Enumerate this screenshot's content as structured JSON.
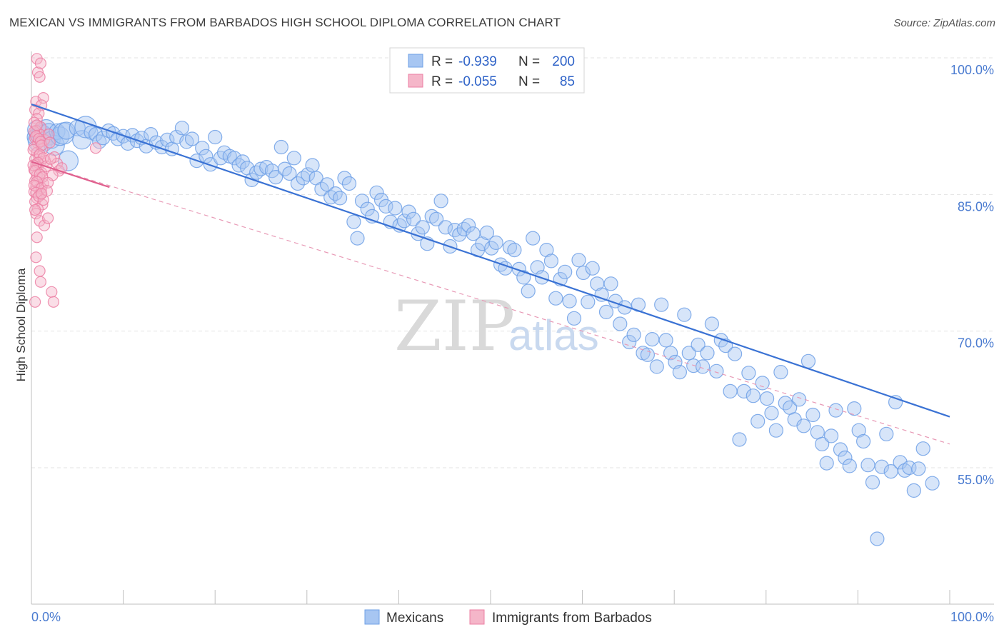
{
  "header": {
    "title": "MEXICAN VS IMMIGRANTS FROM BARBADOS HIGH SCHOOL DIPLOMA CORRELATION CHART",
    "source": "Source: ZipAtlas.com"
  },
  "watermark": {
    "zip": "ZIP",
    "atlas": "atlas"
  },
  "legend_top": {
    "rows": [
      {
        "r_label": "R =",
        "r_value": "-0.939",
        "n_label": "N =",
        "n_value": "200",
        "color": "#a7c6f2"
      },
      {
        "r_label": "R =",
        "r_value": "-0.055",
        "n_label": "N =",
        "n_value": "85",
        "color": "#f5b6c9"
      }
    ]
  },
  "legend_bottom": {
    "items": [
      {
        "label": "Mexicans",
        "color": "#a7c6f2"
      },
      {
        "label": "Immigrants from Barbados",
        "color": "#f5b6c9"
      }
    ]
  },
  "chart_data": {
    "type": "scatter",
    "title": "MEXICAN VS IMMIGRANTS FROM BARBADOS HIGH SCHOOL DIPLOMA CORRELATION CHART",
    "xlabel": "",
    "ylabel": "High School Diploma",
    "xlim": [
      0,
      100
    ],
    "ylim": [
      40,
      103
    ],
    "x_tick_labels": [
      "0.0%",
      "100.0%"
    ],
    "y_ticks": [
      100,
      85,
      70,
      55
    ],
    "y_tick_labels": [
      "100.0%",
      "85.0%",
      "70.0%",
      "55.0%"
    ],
    "grid": true,
    "legend_placement": "top-center",
    "series": [
      {
        "name": "Mexicans",
        "color": "#6fa0e6",
        "fill": "#a7c6f2",
        "trend": {
          "x": [
            0,
            100
          ],
          "y": [
            94.9,
            60.6
          ],
          "style": "solid",
          "color": "#3a72d4"
        },
        "points": [
          [
            0.4,
            91.3
          ],
          [
            0.6,
            92.1
          ],
          [
            0.8,
            90.9
          ],
          [
            1.0,
            91.8
          ],
          [
            1.2,
            91.5
          ],
          [
            1.4,
            90.6
          ],
          [
            1.6,
            92.2
          ],
          [
            1.9,
            91.6
          ],
          [
            2.2,
            91.0
          ],
          [
            2.5,
            90.4
          ],
          [
            2.8,
            91.9
          ],
          [
            3.1,
            91.4
          ],
          [
            3.5,
            91.7
          ],
          [
            3.8,
            92.0
          ],
          [
            4.0,
            88.7
          ],
          [
            5.0,
            92.3
          ],
          [
            5.5,
            91.0
          ],
          [
            5.9,
            92.4
          ],
          [
            6.5,
            91.8
          ],
          [
            7.0,
            91.6
          ],
          [
            7.4,
            90.8
          ],
          [
            7.8,
            91.2
          ],
          [
            8.4,
            92.0
          ],
          [
            8.9,
            91.7
          ],
          [
            9.4,
            91.1
          ],
          [
            10.0,
            91.4
          ],
          [
            10.5,
            90.6
          ],
          [
            11.0,
            91.5
          ],
          [
            11.5,
            90.9
          ],
          [
            12.0,
            91.2
          ],
          [
            12.5,
            90.3
          ],
          [
            13.0,
            91.6
          ],
          [
            13.6,
            90.7
          ],
          [
            14.2,
            90.2
          ],
          [
            14.8,
            91.0
          ],
          [
            15.3,
            90.0
          ],
          [
            15.8,
            91.3
          ],
          [
            16.4,
            92.3
          ],
          [
            16.9,
            90.8
          ],
          [
            17.5,
            91.1
          ],
          [
            18.0,
            88.7
          ],
          [
            18.6,
            90.1
          ],
          [
            19.0,
            89.2
          ],
          [
            19.5,
            88.3
          ],
          [
            20.0,
            91.3
          ],
          [
            20.6,
            89.0
          ],
          [
            21.0,
            89.6
          ],
          [
            21.6,
            89.2
          ],
          [
            22.1,
            89.0
          ],
          [
            22.6,
            88.2
          ],
          [
            23.0,
            88.6
          ],
          [
            23.5,
            87.9
          ],
          [
            24.0,
            86.6
          ],
          [
            24.5,
            87.4
          ],
          [
            25.0,
            87.8
          ],
          [
            25.6,
            88.0
          ],
          [
            26.2,
            87.6
          ],
          [
            26.6,
            86.9
          ],
          [
            27.2,
            90.2
          ],
          [
            27.6,
            87.8
          ],
          [
            28.1,
            87.3
          ],
          [
            28.6,
            89.0
          ],
          [
            29.0,
            86.2
          ],
          [
            29.6,
            86.8
          ],
          [
            30.1,
            87.2
          ],
          [
            30.6,
            88.2
          ],
          [
            31.0,
            86.8
          ],
          [
            31.6,
            85.6
          ],
          [
            32.2,
            86.1
          ],
          [
            32.6,
            84.7
          ],
          [
            33.1,
            85.1
          ],
          [
            33.6,
            84.6
          ],
          [
            34.1,
            86.8
          ],
          [
            34.6,
            86.2
          ],
          [
            35.1,
            82.0
          ],
          [
            35.5,
            80.2
          ],
          [
            36.0,
            84.3
          ],
          [
            36.6,
            83.4
          ],
          [
            37.1,
            82.6
          ],
          [
            37.6,
            85.2
          ],
          [
            38.1,
            84.4
          ],
          [
            38.6,
            83.7
          ],
          [
            39.1,
            82.0
          ],
          [
            39.6,
            83.5
          ],
          [
            40.1,
            81.6
          ],
          [
            40.6,
            82.1
          ],
          [
            41.1,
            83.1
          ],
          [
            41.6,
            82.3
          ],
          [
            42.1,
            80.7
          ],
          [
            42.6,
            81.4
          ],
          [
            43.1,
            79.6
          ],
          [
            43.6,
            82.6
          ],
          [
            44.1,
            82.3
          ],
          [
            44.6,
            84.3
          ],
          [
            45.1,
            81.4
          ],
          [
            45.6,
            79.3
          ],
          [
            46.1,
            81.1
          ],
          [
            46.6,
            80.6
          ],
          [
            47.1,
            81.2
          ],
          [
            47.6,
            81.6
          ],
          [
            48.1,
            80.7
          ],
          [
            48.6,
            78.9
          ],
          [
            49.1,
            79.6
          ],
          [
            49.6,
            80.8
          ],
          [
            50.1,
            79.1
          ],
          [
            50.6,
            79.7
          ],
          [
            51.1,
            77.3
          ],
          [
            51.6,
            76.9
          ],
          [
            52.1,
            79.2
          ],
          [
            52.6,
            78.9
          ],
          [
            53.1,
            76.8
          ],
          [
            53.6,
            75.9
          ],
          [
            54.1,
            74.4
          ],
          [
            54.6,
            80.2
          ],
          [
            55.1,
            77.0
          ],
          [
            55.6,
            75.9
          ],
          [
            56.1,
            78.9
          ],
          [
            56.6,
            77.7
          ],
          [
            57.1,
            73.6
          ],
          [
            57.6,
            75.7
          ],
          [
            58.1,
            76.5
          ],
          [
            58.6,
            73.3
          ],
          [
            59.1,
            71.4
          ],
          [
            59.6,
            77.8
          ],
          [
            60.1,
            76.4
          ],
          [
            60.6,
            73.2
          ],
          [
            61.1,
            76.9
          ],
          [
            61.6,
            75.2
          ],
          [
            62.1,
            74.0
          ],
          [
            62.6,
            72.1
          ],
          [
            63.1,
            75.2
          ],
          [
            63.6,
            73.3
          ],
          [
            64.1,
            70.8
          ],
          [
            64.6,
            72.6
          ],
          [
            65.1,
            68.8
          ],
          [
            65.6,
            69.6
          ],
          [
            66.1,
            72.9
          ],
          [
            66.6,
            67.6
          ],
          [
            67.1,
            67.4
          ],
          [
            67.6,
            69.1
          ],
          [
            68.1,
            66.1
          ],
          [
            68.6,
            72.9
          ],
          [
            69.1,
            69.0
          ],
          [
            69.6,
            67.6
          ],
          [
            70.1,
            66.6
          ],
          [
            70.6,
            65.5
          ],
          [
            71.1,
            71.8
          ],
          [
            71.6,
            67.6
          ],
          [
            72.1,
            66.2
          ],
          [
            72.6,
            68.5
          ],
          [
            73.1,
            66.1
          ],
          [
            73.6,
            67.6
          ],
          [
            74.1,
            70.8
          ],
          [
            74.6,
            65.6
          ],
          [
            75.1,
            69.0
          ],
          [
            75.6,
            68.4
          ],
          [
            76.1,
            63.4
          ],
          [
            76.6,
            67.5
          ],
          [
            77.1,
            58.1
          ],
          [
            77.6,
            63.4
          ],
          [
            78.1,
            65.4
          ],
          [
            78.6,
            62.9
          ],
          [
            79.1,
            60.1
          ],
          [
            79.6,
            64.3
          ],
          [
            80.1,
            62.6
          ],
          [
            80.6,
            61.0
          ],
          [
            81.1,
            59.1
          ],
          [
            81.6,
            65.5
          ],
          [
            82.1,
            62.1
          ],
          [
            82.6,
            61.6
          ],
          [
            83.1,
            60.3
          ],
          [
            83.6,
            62.5
          ],
          [
            84.1,
            59.6
          ],
          [
            84.6,
            66.7
          ],
          [
            85.1,
            60.8
          ],
          [
            85.6,
            58.9
          ],
          [
            86.1,
            57.6
          ],
          [
            86.6,
            55.5
          ],
          [
            87.1,
            58.5
          ],
          [
            87.6,
            61.3
          ],
          [
            88.1,
            57.0
          ],
          [
            88.6,
            56.1
          ],
          [
            89.1,
            55.2
          ],
          [
            89.6,
            61.5
          ],
          [
            90.1,
            59.1
          ],
          [
            90.6,
            57.9
          ],
          [
            91.1,
            55.3
          ],
          [
            91.6,
            53.4
          ],
          [
            92.1,
            47.2
          ],
          [
            92.6,
            55.1
          ],
          [
            93.1,
            58.7
          ],
          [
            93.6,
            54.6
          ],
          [
            94.1,
            62.2
          ],
          [
            94.6,
            55.6
          ],
          [
            95.1,
            54.7
          ],
          [
            95.6,
            55.0
          ],
          [
            96.1,
            52.5
          ],
          [
            96.6,
            54.9
          ],
          [
            97.1,
            57.1
          ],
          [
            98.1,
            53.3
          ]
        ]
      },
      {
        "name": "Immigrants from Barbados",
        "color": "#ec7fa3",
        "fill": "#f5b6c9",
        "trend_solid": {
          "x": [
            0,
            8.5
          ],
          "y": [
            88.6,
            85.8
          ],
          "style": "solid",
          "color": "#e0608e"
        },
        "trend_dashed": {
          "x": [
            0,
            100
          ],
          "y": [
            88.6,
            57.6
          ],
          "style": "dashed",
          "color": "#e89ab6"
        },
        "points": [
          [
            0.6,
            99.9
          ],
          [
            0.7,
            98.4
          ],
          [
            1.0,
            99.4
          ],
          [
            0.9,
            97.9
          ],
          [
            0.5,
            95.2
          ],
          [
            1.3,
            95.6
          ],
          [
            0.4,
            94.3
          ],
          [
            1.1,
            94.8
          ],
          [
            0.8,
            93.9
          ],
          [
            0.6,
            93.3
          ],
          [
            0.3,
            92.9
          ],
          [
            1.0,
            92.4
          ],
          [
            0.5,
            92.0
          ],
          [
            0.9,
            91.6
          ],
          [
            0.4,
            91.2
          ],
          [
            1.4,
            91.0
          ],
          [
            0.7,
            90.6
          ],
          [
            0.3,
            90.2
          ],
          [
            1.2,
            90.0
          ],
          [
            0.6,
            89.6
          ],
          [
            0.8,
            89.2
          ],
          [
            0.4,
            88.9
          ],
          [
            1.0,
            88.6
          ],
          [
            0.5,
            88.3
          ],
          [
            1.5,
            88.7
          ],
          [
            0.7,
            88.0
          ],
          [
            0.3,
            87.7
          ],
          [
            1.1,
            87.4
          ],
          [
            0.6,
            87.1
          ],
          [
            0.9,
            86.8
          ],
          [
            0.4,
            86.5
          ],
          [
            1.3,
            86.2
          ],
          [
            0.5,
            85.9
          ],
          [
            0.8,
            85.6
          ],
          [
            0.3,
            85.3
          ],
          [
            1.0,
            85.0
          ],
          [
            0.6,
            84.6
          ],
          [
            0.4,
            84.2
          ],
          [
            1.2,
            83.9
          ],
          [
            0.7,
            83.4
          ],
          [
            0.5,
            82.9
          ],
          [
            0.9,
            82.1
          ],
          [
            1.4,
            81.6
          ],
          [
            0.6,
            80.3
          ],
          [
            0.5,
            78.1
          ],
          [
            0.9,
            76.6
          ],
          [
            1.0,
            75.4
          ],
          [
            2.2,
            74.3
          ],
          [
            0.4,
            73.2
          ],
          [
            2.4,
            73.2
          ],
          [
            0.3,
            91.9
          ],
          [
            0.5,
            91.4
          ],
          [
            0.8,
            91.1
          ],
          [
            1.0,
            90.8
          ],
          [
            1.1,
            90.4
          ],
          [
            0.2,
            89.9
          ],
          [
            0.9,
            89.4
          ],
          [
            1.3,
            89.0
          ],
          [
            0.7,
            88.5
          ],
          [
            0.2,
            88.2
          ],
          [
            1.6,
            88.1
          ],
          [
            0.4,
            87.6
          ],
          [
            0.9,
            87.2
          ],
          [
            1.2,
            86.9
          ],
          [
            0.6,
            86.4
          ],
          [
            0.3,
            86.0
          ],
          [
            1.1,
            85.7
          ],
          [
            0.5,
            85.2
          ],
          [
            0.8,
            84.8
          ],
          [
            1.3,
            84.4
          ],
          [
            2.5,
            89.1
          ],
          [
            2.8,
            88.4
          ],
          [
            3.0,
            87.6
          ],
          [
            3.3,
            87.9
          ],
          [
            2.1,
            88.9
          ],
          [
            2.3,
            87.1
          ],
          [
            1.8,
            86.3
          ],
          [
            1.9,
            91.6
          ],
          [
            2.0,
            90.7
          ],
          [
            7.0,
            90.1
          ],
          [
            1.7,
            85.4
          ],
          [
            0.4,
            83.3
          ],
          [
            1.8,
            82.4
          ],
          [
            0.6,
            92.6
          ],
          [
            1.1,
            85.1
          ]
        ]
      }
    ]
  }
}
